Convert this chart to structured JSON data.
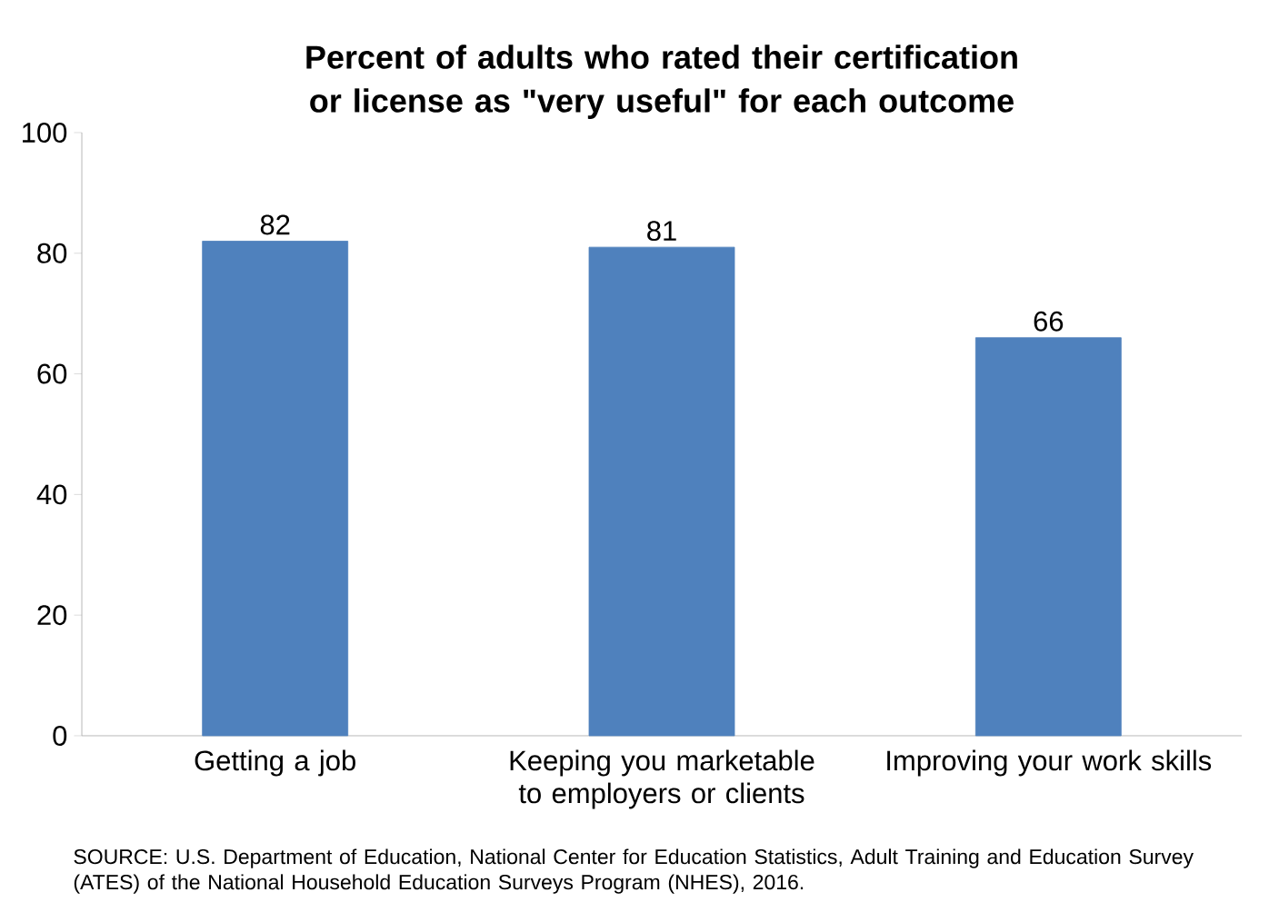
{
  "chart_data": {
    "type": "bar",
    "title": "Percent of adults who rated their certification or license as \"very useful\" for each outcome",
    "categories": [
      "Getting a job",
      "Keeping you marketable to employers or clients",
      "Improving your work skills"
    ],
    "values": [
      82,
      81,
      66
    ],
    "color": "#4f81bd",
    "data_labels": true,
    "ylim": [
      0,
      100
    ],
    "yticks": [
      0,
      20,
      40,
      60,
      80,
      100
    ],
    "grid": false,
    "annotations": [
      "SOURCE: U.S. Department of Education, National Center for Education Statistics, Adult Training and Education Survey (ATES) of the National Household Education Surveys Program (NHES), 2016."
    ]
  }
}
